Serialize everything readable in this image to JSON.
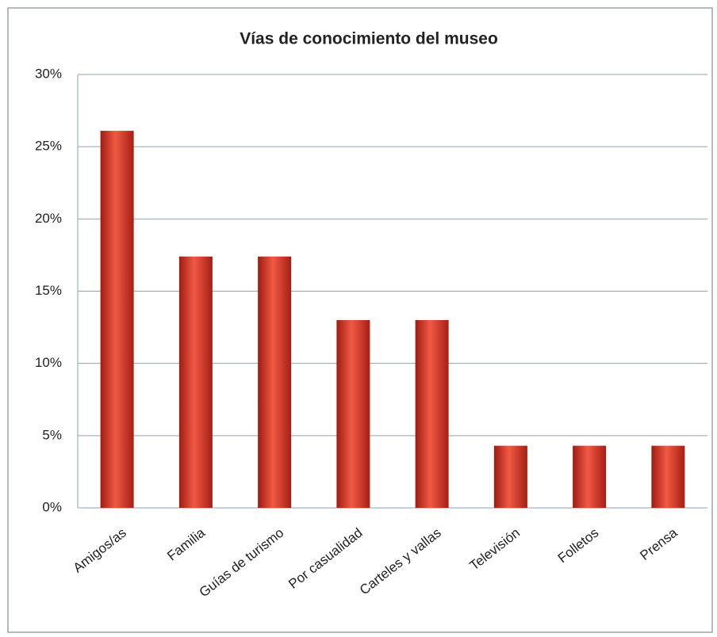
{
  "chart_data": {
    "type": "bar",
    "title": "Vías de conocimiento del museo",
    "categories": [
      "Amigos/as",
      "Familia",
      "Guías de turismo",
      "Por casualidad",
      "Carteles y vallas",
      "Televisión",
      "Folletos",
      "Prensa"
    ],
    "values": [
      26.1,
      17.4,
      17.4,
      13.0,
      13.0,
      4.3,
      4.3,
      4.3
    ],
    "color": "#d93a2b",
    "ylim": [
      0,
      30
    ],
    "yticks": [
      {
        "value": 0,
        "label": "0%"
      },
      {
        "value": 5,
        "label": "5%"
      },
      {
        "value": 10,
        "label": "10%"
      },
      {
        "value": 15,
        "label": "15%"
      },
      {
        "value": 20,
        "label": "20%"
      },
      {
        "value": 25,
        "label": "25%"
      },
      {
        "value": 30,
        "label": "30%"
      }
    ],
    "grid": true
  }
}
